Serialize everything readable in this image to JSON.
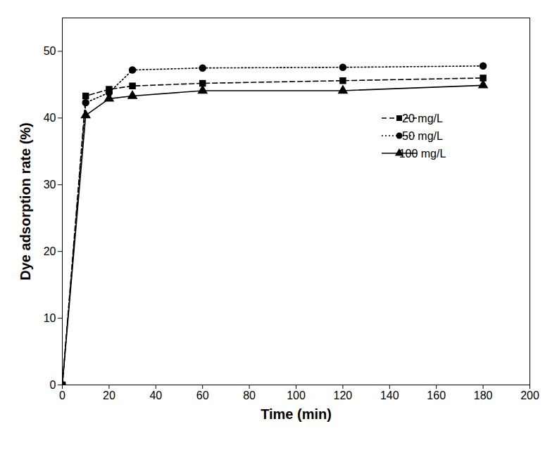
{
  "chart_data": {
    "type": "line",
    "x_label": "Time (min)",
    "y_label": "Dye adsorption rate (%)",
    "x": [
      0,
      10,
      20,
      30,
      60,
      120,
      180
    ],
    "series": [
      {
        "name": "20 mg/L",
        "color": "#000000",
        "marker": "square",
        "line_style": "dashed",
        "values": [
          0,
          43.3,
          44.3,
          44.8,
          45.2,
          45.6,
          46.0
        ]
      },
      {
        "name": "50 mg/L",
        "color": "#000000",
        "marker": "circle",
        "line_style": "dotted",
        "values": [
          0,
          42.3,
          43.8,
          47.2,
          47.5,
          47.6,
          47.8
        ]
      },
      {
        "name": "100 mg/L",
        "color": "#000000",
        "marker": "triangle",
        "line_style": "solid",
        "values": [
          0,
          40.4,
          42.9,
          43.3,
          44.1,
          44.1,
          44.9
        ]
      }
    ],
    "xlim": [
      0,
      200
    ],
    "xticks": [
      0,
      20,
      40,
      60,
      80,
      100,
      120,
      140,
      160,
      180,
      200
    ],
    "ylim": [
      0,
      55
    ],
    "yticks": [
      0,
      10,
      20,
      30,
      40,
      50
    ],
    "legend": "upper right"
  }
}
